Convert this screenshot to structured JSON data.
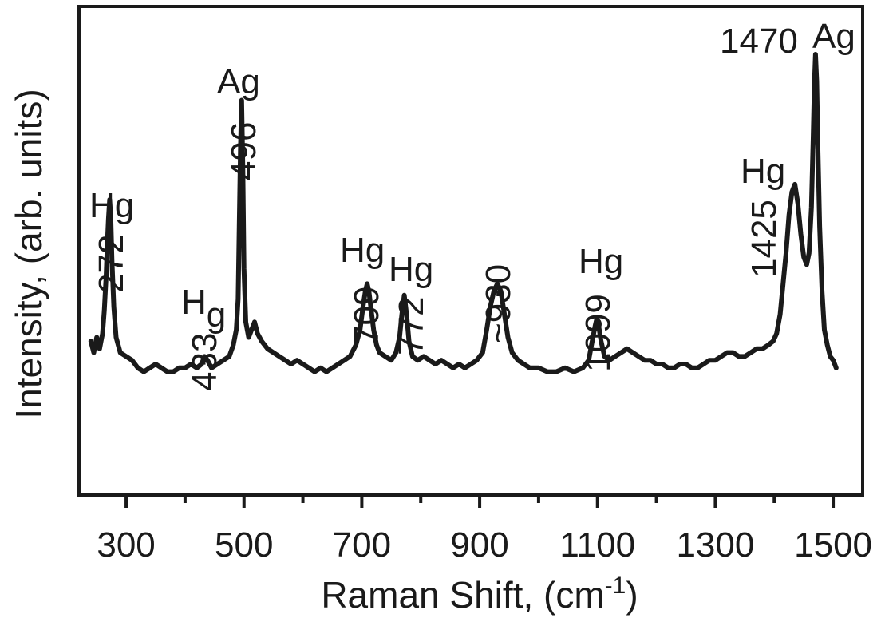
{
  "chart_data": {
    "type": "line",
    "title": "",
    "xlabel": "Raman Shift, (cm",
    "xlabel_sup": "-1",
    "xlabel_close": ")",
    "ylabel": "Intensity, (arb. units)",
    "xlim": [
      220,
      1550
    ],
    "ylim": [
      0,
      100
    ],
    "x_ticks": [
      300,
      500,
      700,
      900,
      1100,
      1300,
      1500
    ],
    "x_tick_labels": [
      "300",
      "500",
      "700",
      "900",
      "1100",
      "1300",
      "1500"
    ],
    "x_minor_ticks": [
      400,
      600,
      800,
      1000,
      1200,
      1400
    ],
    "y_ticks_shown": false,
    "grid": false,
    "series": [
      {
        "color": "#1a1a1a",
        "x": [
          240,
          245,
          250,
          255,
          260,
          263,
          266,
          268,
          270,
          272,
          274,
          276,
          279,
          283,
          290,
          300,
          310,
          320,
          330,
          340,
          350,
          360,
          370,
          380,
          390,
          400,
          410,
          420,
          428,
          433,
          438,
          445,
          455,
          465,
          475,
          482,
          487,
          490,
          492,
          494,
          496,
          498,
          500,
          503,
          508,
          513,
          518,
          523,
          530,
          540,
          550,
          560,
          570,
          580,
          590,
          600,
          610,
          620,
          630,
          640,
          650,
          660,
          670,
          680,
          690,
          697,
          702,
          706,
          709,
          712,
          716,
          720,
          725,
          730,
          740,
          750,
          758,
          764,
          768,
          772,
          776,
          780,
          786,
          795,
          805,
          815,
          825,
          835,
          845,
          855,
          865,
          875,
          885,
          895,
          905,
          912,
          918,
          924,
          930,
          936,
          942,
          948,
          955,
          965,
          975,
          985,
          1000,
          1015,
          1030,
          1045,
          1060,
          1075,
          1085,
          1091,
          1096,
          1099,
          1102,
          1106,
          1112,
          1120,
          1130,
          1140,
          1150,
          1160,
          1170,
          1180,
          1190,
          1200,
          1210,
          1220,
          1230,
          1240,
          1250,
          1260,
          1270,
          1280,
          1290,
          1300,
          1310,
          1320,
          1330,
          1340,
          1350,
          1360,
          1370,
          1380,
          1390,
          1398,
          1404,
          1410,
          1415,
          1420,
          1425,
          1430,
          1435,
          1440,
          1445,
          1450,
          1455,
          1459,
          1463,
          1466,
          1468,
          1470,
          1472,
          1474,
          1477,
          1481,
          1485,
          1490,
          1495,
          1500,
          1505
        ],
        "y": [
          25,
          22,
          26,
          23,
          27,
          33,
          42,
          50,
          57,
          62,
          57,
          46,
          34,
          26,
          22,
          21,
          20,
          18,
          17,
          18,
          19,
          18,
          17,
          17,
          18,
          18,
          19,
          18,
          19,
          21,
          20,
          18,
          19,
          20,
          21,
          24,
          28,
          36,
          55,
          75,
          88,
          70,
          44,
          30,
          26,
          28,
          30,
          27,
          25,
          23,
          22,
          21,
          20,
          19,
          20,
          19,
          18,
          17,
          18,
          17,
          18,
          19,
          20,
          21,
          24,
          28,
          34,
          38,
          40,
          38,
          33,
          28,
          24,
          22,
          21,
          20,
          22,
          26,
          32,
          37,
          32,
          25,
          21,
          20,
          21,
          20,
          19,
          20,
          19,
          18,
          19,
          18,
          19,
          20,
          22,
          28,
          34,
          38,
          40,
          38,
          32,
          26,
          22,
          20,
          19,
          18,
          18,
          17,
          17,
          18,
          17,
          18,
          20,
          25,
          29,
          31,
          29,
          25,
          21,
          20,
          21,
          22,
          23,
          22,
          21,
          20,
          20,
          19,
          19,
          18,
          18,
          19,
          19,
          18,
          18,
          19,
          20,
          20,
          21,
          22,
          22,
          21,
          21,
          22,
          23,
          23,
          24,
          25,
          27,
          32,
          40,
          48,
          58,
          64,
          66,
          61,
          53,
          47,
          45,
          48,
          60,
          78,
          92,
          100,
          93,
          76,
          55,
          38,
          28,
          24,
          21,
          20,
          18
        ]
      }
    ],
    "annotations": [
      {
        "peak": "272",
        "mode": "Hg",
        "mode_sub": ""
      },
      {
        "peak": "433",
        "mode": "H",
        "mode_sub": "g"
      },
      {
        "peak": "496",
        "mode": "Ag",
        "mode_sub": ""
      },
      {
        "peak": "709",
        "mode": "Hg",
        "mode_sub": ""
      },
      {
        "peak": "772",
        "mode": "Hg",
        "mode_sub": ""
      },
      {
        "peak": "~930",
        "mode": "",
        "mode_sub": ""
      },
      {
        "peak": "1099",
        "mode": "Hg",
        "mode_sub": ""
      },
      {
        "peak": "1425",
        "mode": "Hg",
        "mode_sub": ""
      },
      {
        "peak": "1470",
        "mode": "Ag",
        "mode_sub": ""
      }
    ]
  }
}
